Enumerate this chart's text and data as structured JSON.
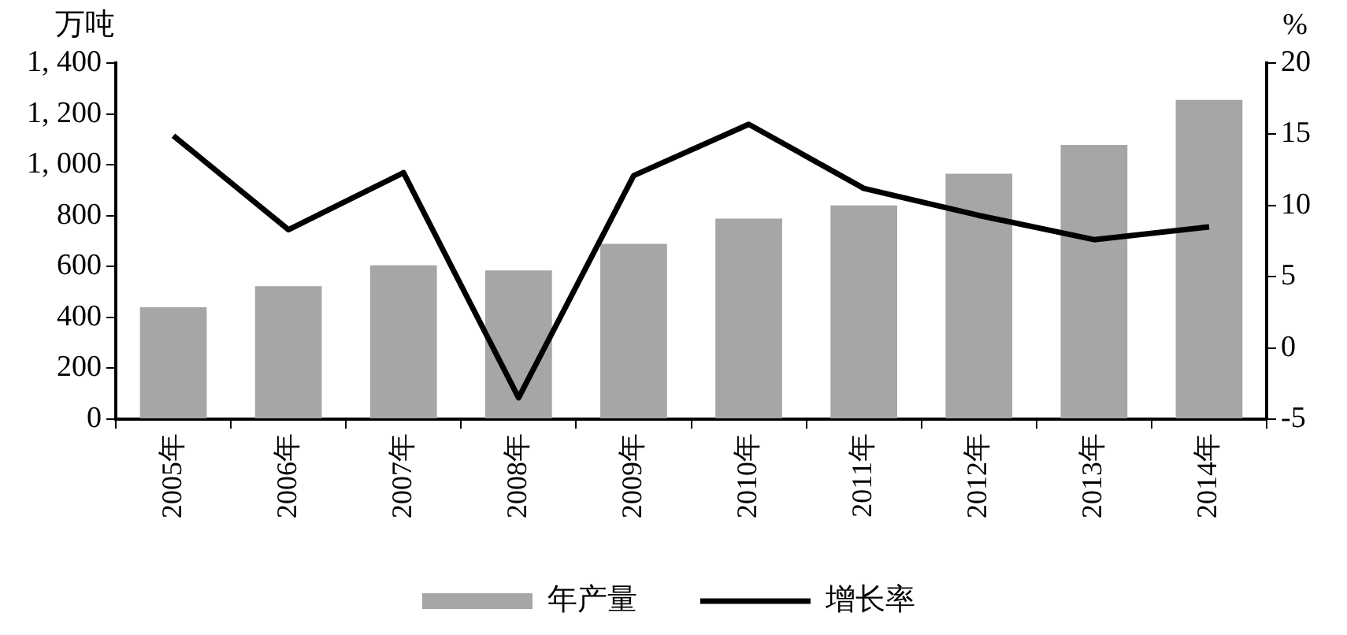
{
  "chart_data": {
    "type": "bar",
    "categories": [
      "2005年",
      "2006年",
      "2007年",
      "2008年",
      "2009年",
      "2010年",
      "2011年",
      "2012年",
      "2013年",
      "2014年"
    ],
    "ylabel": "万吨",
    "y2label": "%",
    "series": [
      {
        "name": "年产量",
        "color": "#a6a6a6",
        "values": [
          440,
          523,
          605,
          585,
          689,
          788,
          840,
          965,
          1078,
          1255
        ]
      },
      {
        "name": "增长率",
        "type": "line",
        "axis": "y2",
        "color": "#000000",
        "values": [
          14.9,
          8.3,
          12.3,
          -3.5,
          12.1,
          15.7,
          11.2,
          9.3,
          7.6,
          8.5
        ]
      }
    ],
    "ylim": [
      0,
      1400
    ],
    "yticks": [
      0,
      200,
      400,
      600,
      800,
      {
        "value": 1000,
        "label": "1, 000"
      },
      {
        "value": 1200,
        "label": "1, 200"
      },
      {
        "value": 1400,
        "label": "1, 400"
      }
    ],
    "y2lim": [
      -5,
      20
    ],
    "y2ticks": [
      -5,
      0,
      5,
      10,
      15,
      20
    ],
    "grid": false,
    "legend": "bottom",
    "marker": "none"
  }
}
